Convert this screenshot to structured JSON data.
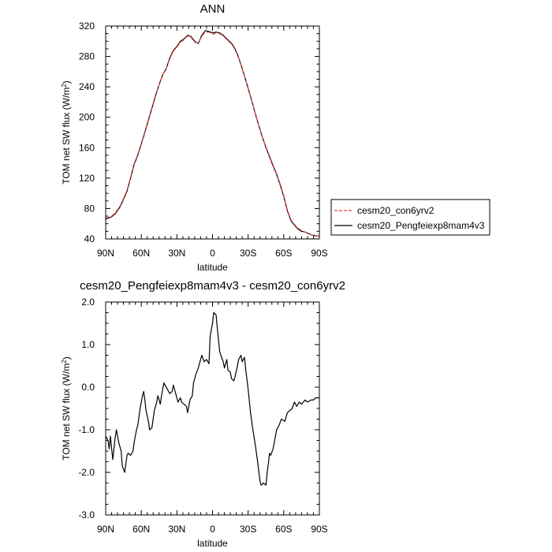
{
  "chart_data": [
    {
      "type": "line",
      "title": "ANN",
      "xlabel": "latitude",
      "ylabel": "TOM net SW flux (W/m",
      "ylabel_sup": "2",
      "ylabel_close": ")",
      "xlim": [
        90,
        -90
      ],
      "ylim": [
        40,
        320
      ],
      "xticks": [
        {
          "value": 90,
          "label": "90N"
        },
        {
          "value": 60,
          "label": "60N"
        },
        {
          "value": 30,
          "label": "30N"
        },
        {
          "value": 0,
          "label": "0"
        },
        {
          "value": -30,
          "label": "30S"
        },
        {
          "value": -60,
          "label": "60S"
        },
        {
          "value": -90,
          "label": "90S"
        }
      ],
      "yticks": [
        {
          "value": 40,
          "label": "40"
        },
        {
          "value": 80,
          "label": "80"
        },
        {
          "value": 120,
          "label": "120"
        },
        {
          "value": 160,
          "label": "160"
        },
        {
          "value": 200,
          "label": "200"
        },
        {
          "value": 240,
          "label": "240"
        },
        {
          "value": 280,
          "label": "280"
        },
        {
          "value": 320,
          "label": "320"
        }
      ],
      "legend": {
        "placement": "right",
        "entries": [
          {
            "label": "cesm20_con6yrv2",
            "color": "#e04040",
            "dash": true
          },
          {
            "label": "cesm20_Pengfeiexp8mam4v3",
            "color": "#000000",
            "dash": false
          }
        ]
      },
      "series": [
        {
          "name": "cesm20_Pengfeiexp8mam4v3",
          "color": "#000000",
          "dash": false,
          "x": [
            90,
            85,
            82,
            78,
            75,
            72,
            69,
            66,
            63,
            60,
            57,
            54,
            51,
            48,
            45,
            42,
            39,
            36,
            33,
            30,
            27,
            24,
            21,
            18,
            15,
            12,
            9,
            6,
            3,
            0,
            -3,
            -6,
            -9,
            -12,
            -15,
            -18,
            -21,
            -24,
            -27,
            -30,
            -33,
            -36,
            -39,
            -42,
            -45,
            -48,
            -51,
            -54,
            -57,
            -60,
            -63,
            -66,
            -69,
            -72,
            -75,
            -78,
            -81,
            -84,
            -87,
            -90
          ],
          "y": [
            66,
            69,
            73,
            82,
            92,
            103,
            120,
            138,
            150,
            165,
            180,
            196,
            212,
            228,
            243,
            256,
            264,
            278,
            288,
            293,
            300,
            303,
            308,
            306,
            300,
            297,
            308,
            314,
            313,
            311,
            312,
            311,
            308,
            303,
            299,
            293,
            283,
            269,
            254,
            238,
            222,
            205,
            189,
            174,
            160,
            148,
            136,
            125,
            111,
            96,
            77,
            64,
            58,
            53,
            50,
            49,
            47,
            45,
            44,
            44
          ]
        },
        {
          "name": "cesm20_con6yrv2",
          "color": "#e04040",
          "dash": true,
          "x": [
            90,
            85,
            82,
            78,
            75,
            72,
            69,
            66,
            63,
            60,
            57,
            54,
            51,
            48,
            45,
            42,
            39,
            36,
            33,
            30,
            27,
            24,
            21,
            18,
            15,
            12,
            9,
            6,
            3,
            0,
            -3,
            -6,
            -9,
            -12,
            -15,
            -18,
            -21,
            -24,
            -27,
            -30,
            -33,
            -36,
            -39,
            -42,
            -45,
            -48,
            -51,
            -54,
            -57,
            -60,
            -63,
            -66,
            -69,
            -72,
            -75,
            -78,
            -81,
            -84,
            -87,
            -90
          ],
          "y": [
            67,
            70,
            74,
            83,
            93,
            104,
            121,
            139,
            151,
            166,
            181,
            197,
            213,
            229,
            243,
            256,
            264,
            277,
            287,
            292,
            299,
            302,
            307,
            305,
            299,
            297,
            307,
            312,
            312,
            309,
            311,
            310,
            307,
            302,
            298,
            292,
            282,
            269,
            254,
            238,
            222,
            205,
            189,
            174,
            161,
            149,
            137,
            126,
            112,
            97,
            78,
            65,
            59,
            54,
            51,
            49,
            47,
            45,
            44,
            44
          ]
        }
      ]
    },
    {
      "type": "line",
      "title": "cesm20_Pengfeiexp8mam4v3 - cesm20_con6yrv2",
      "xlabel": "latitude",
      "ylabel": "TOM net SW flux (W/m",
      "ylabel_sup": "2",
      "ylabel_close": ")",
      "xlim": [
        90,
        -90
      ],
      "ylim": [
        -3.0,
        2.0
      ],
      "xticks": [
        {
          "value": 90,
          "label": "90N"
        },
        {
          "value": 60,
          "label": "60N"
        },
        {
          "value": 30,
          "label": "30N"
        },
        {
          "value": 0,
          "label": "0"
        },
        {
          "value": -30,
          "label": "30S"
        },
        {
          "value": -60,
          "label": "60S"
        },
        {
          "value": -90,
          "label": "90S"
        }
      ],
      "yticks": [
        {
          "value": -3.0,
          "label": "-3.0"
        },
        {
          "value": -2.0,
          "label": "-2.0"
        },
        {
          "value": -1.0,
          "label": "-1.0"
        },
        {
          "value": 0.0,
          "label": "0.0"
        },
        {
          "value": 1.0,
          "label": "1.0"
        },
        {
          "value": 2.0,
          "label": "2.0"
        }
      ],
      "series": [
        {
          "color": "#000000",
          "dash": false,
          "x": [
            90,
            88,
            87,
            86,
            84,
            82,
            81,
            79,
            77,
            76,
            74,
            72,
            71,
            69,
            67,
            66,
            64,
            63,
            61,
            59,
            58,
            57,
            56,
            54,
            53,
            51,
            49,
            47,
            46,
            44,
            43,
            41,
            40,
            38,
            36,
            34,
            33,
            31,
            29,
            27,
            26,
            24,
            22,
            21,
            19,
            17,
            16,
            14,
            12,
            10,
            9,
            7,
            5,
            3,
            2,
            0,
            -1,
            -3,
            -4,
            -6,
            -7,
            -9,
            -10,
            -12,
            -13,
            -15,
            -16,
            -18,
            -19,
            -21,
            -22,
            -24,
            -25,
            -27,
            -28,
            -30,
            -32,
            -34,
            -36,
            -38,
            -40,
            -41,
            -43,
            -45,
            -46,
            -47,
            -48,
            -49,
            -51,
            -52,
            -54,
            -56,
            -58,
            -61,
            -63,
            -65,
            -67,
            -69,
            -71,
            -73,
            -75,
            -78,
            -80,
            -83,
            -85,
            -87,
            -90
          ],
          "y": [
            -1.15,
            -1.25,
            -1.45,
            -1.15,
            -1.7,
            -1.2,
            -1.0,
            -1.3,
            -1.5,
            -1.85,
            -2.0,
            -1.6,
            -1.55,
            -1.6,
            -1.5,
            -1.3,
            -1.0,
            -0.9,
            -0.5,
            -0.2,
            -0.1,
            -0.3,
            -0.55,
            -0.8,
            -1.0,
            -0.95,
            -0.55,
            -0.35,
            -0.2,
            -0.4,
            -0.2,
            0.1,
            0.05,
            -0.05,
            -0.15,
            -0.1,
            0.05,
            -0.15,
            -0.35,
            -0.25,
            -0.35,
            -0.4,
            -0.45,
            -0.6,
            -0.3,
            -0.2,
            0.1,
            0.3,
            0.45,
            0.65,
            0.75,
            0.6,
            0.65,
            0.55,
            1.2,
            1.5,
            1.75,
            1.7,
            1.4,
            0.85,
            0.75,
            0.6,
            0.45,
            0.65,
            0.4,
            0.35,
            0.2,
            0.15,
            0.25,
            0.5,
            0.65,
            0.75,
            0.6,
            0.7,
            0.4,
            -0.05,
            -0.6,
            -1.0,
            -1.35,
            -1.75,
            -2.2,
            -2.3,
            -2.25,
            -2.3,
            -2.0,
            -1.8,
            -1.55,
            -1.6,
            -1.45,
            -1.3,
            -1.0,
            -0.9,
            -0.75,
            -0.8,
            -0.6,
            -0.55,
            -0.5,
            -0.35,
            -0.45,
            -0.35,
            -0.4,
            -0.3,
            -0.35,
            -0.3,
            -0.3,
            -0.25,
            -0.25
          ]
        }
      ]
    }
  ]
}
